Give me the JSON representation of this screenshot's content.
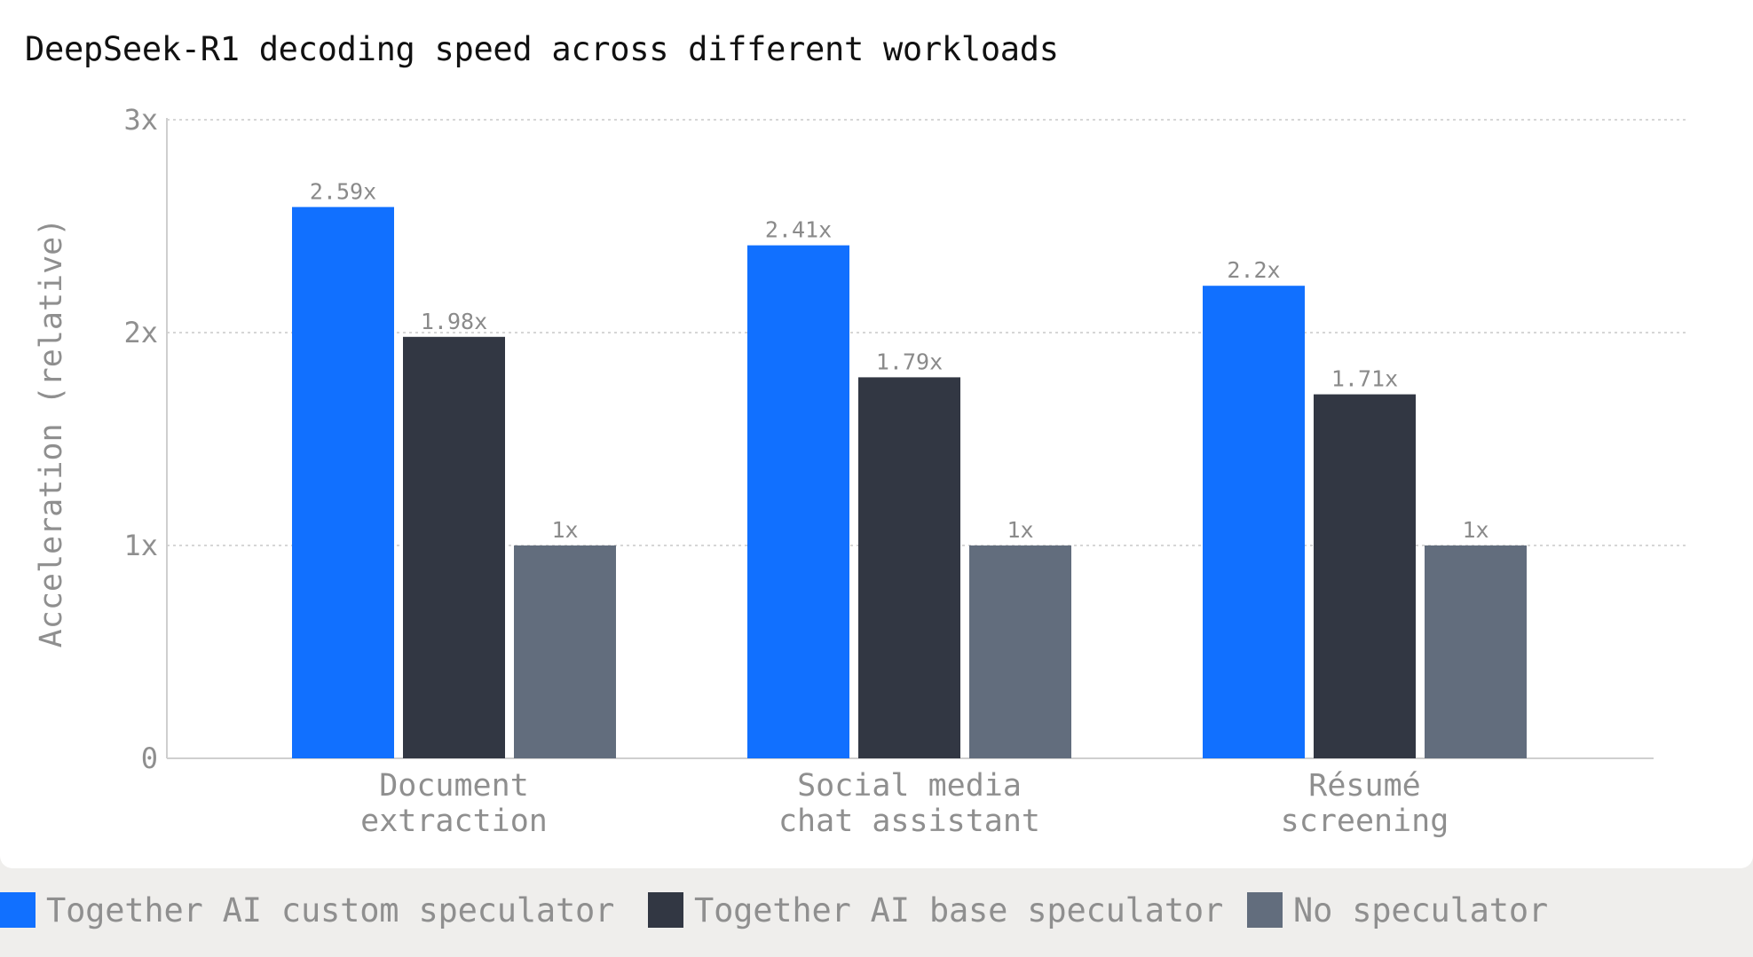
{
  "chart_data": {
    "type": "bar",
    "title": "DeepSeek-R1 decoding speed across different workloads",
    "xlabel": "",
    "ylabel": "Acceleration (relative)",
    "ylim": [
      0,
      3
    ],
    "yticks": [
      0,
      1,
      2,
      3
    ],
    "ytick_labels": [
      "0",
      "1x",
      "2x",
      "3x"
    ],
    "grid": true,
    "legend_position": "bottom",
    "categories": [
      [
        "Document",
        "extraction"
      ],
      [
        "Social media",
        "chat assistant"
      ],
      [
        "Résumé",
        "screening"
      ]
    ],
    "series": [
      {
        "name": "Together AI custom speculator",
        "color": "#1170ff",
        "values": [
          2.59,
          2.41,
          2.22
        ],
        "labels": [
          "2.59x",
          "2.41x",
          "2.2x"
        ]
      },
      {
        "name": "Together AI base speculator",
        "color": "#323743",
        "values": [
          1.98,
          1.79,
          1.71
        ],
        "labels": [
          "1.98x",
          "1.79x",
          "1.71x"
        ]
      },
      {
        "name": "No speculator",
        "color": "#626d7d",
        "values": [
          1.0,
          1.0,
          1.0
        ],
        "labels": [
          "1x",
          "1x",
          "1x"
        ]
      }
    ]
  }
}
